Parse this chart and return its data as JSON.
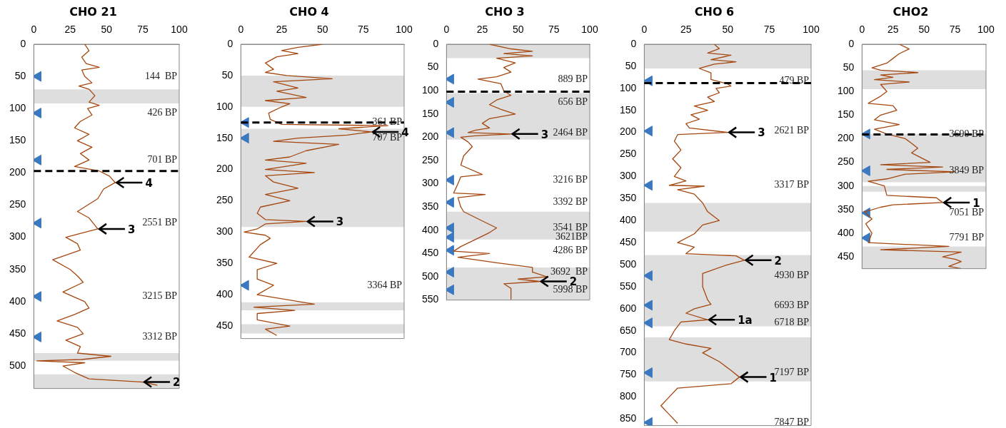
{
  "chart_data": [
    {
      "type": "line",
      "title": "CHO 21",
      "xlim": [
        0,
        100
      ],
      "xticks": [
        0,
        25,
        50,
        75,
        100
      ],
      "ylim": [
        535,
        0
      ],
      "yticks": [
        0,
        50,
        100,
        150,
        200,
        250,
        300,
        350,
        400,
        450,
        500
      ],
      "series": [
        {
          "color": "#a5470f",
          "x": [
            35,
            38,
            33,
            36,
            45,
            33,
            35,
            40,
            31,
            38,
            42,
            38,
            45,
            37,
            40,
            32,
            28,
            38,
            30,
            40,
            32,
            38,
            28,
            45,
            52,
            56,
            48,
            44,
            37,
            30,
            38,
            44,
            22,
            30,
            32,
            13,
            25,
            30,
            34,
            20,
            35,
            38,
            28,
            16,
            30,
            34,
            22,
            32,
            30,
            53,
            33,
            2,
            35,
            20,
            28,
            38,
            75,
            85
          ],
          "values": [
            0,
            10,
            20,
            30,
            36,
            40,
            50,
            60,
            65,
            70,
            80,
            90,
            95,
            100,
            110,
            120,
            130,
            140,
            150,
            160,
            170,
            180,
            190,
            197,
            205,
            215,
            225,
            240,
            250,
            260,
            270,
            287,
            300,
            310,
            320,
            335,
            350,
            360,
            370,
            385,
            400,
            410,
            420,
            430,
            440,
            450,
            460,
            470,
            480,
            485,
            490,
            492,
            495,
            500,
            510,
            520,
            525,
            530
          ]
        },
        {
          "type": "scatter",
          "marker": "triangle",
          "color": "#3a78c0",
          "x": [
            3,
            3,
            3,
            3,
            3,
            3
          ],
          "values": [
            50,
            107,
            180,
            278,
            392,
            455
          ]
        }
      ],
      "bands": [
        {
          "axis": "y",
          "from": 70,
          "to": 92
        },
        {
          "axis": "y",
          "from": 480,
          "to": 492
        },
        {
          "axis": "y",
          "from": 513,
          "to": 535
        }
      ],
      "ref_lines": [
        {
          "axis": "y",
          "value": 197,
          "line_style": "dashed"
        }
      ],
      "annotations": [
        "144  BP",
        "426 BP",
        "701 BP",
        "2551 BP",
        "3215 BP",
        "3312 BP",
        {
          "text": "4",
          "x": 56,
          "y": 215
        },
        {
          "text": "3",
          "x": 44,
          "y": 287
        },
        {
          "text": "2",
          "x": 75,
          "y": 525
        }
      ]
    },
    {
      "type": "line",
      "title": "CHO 4",
      "xlim": [
        0,
        100
      ],
      "xticks": [
        0,
        25,
        50,
        75,
        100
      ],
      "ylim": [
        470,
        0
      ],
      "yticks": [
        0,
        50,
        100,
        150,
        200,
        250,
        300,
        350,
        400,
        450
      ],
      "series": [
        {
          "color": "#a5470f",
          "x": [
            50,
            35,
            25,
            35,
            22,
            15,
            20,
            15,
            28,
            56,
            20,
            35,
            22,
            40,
            15,
            30,
            25,
            17,
            18,
            25,
            90,
            60,
            80,
            65,
            35,
            20,
            60,
            40,
            30,
            15,
            40,
            15,
            45,
            15,
            20,
            35,
            15,
            30,
            12,
            10,
            15,
            40,
            15,
            10,
            2,
            15,
            18,
            12,
            5,
            22,
            10,
            10,
            20,
            10,
            45,
            8,
            33,
            10,
            10,
            30,
            15,
            22
          ],
          "values": [
            0,
            5,
            10,
            15,
            20,
            30,
            40,
            45,
            50,
            55,
            60,
            70,
            75,
            85,
            90,
            95,
            100,
            110,
            120,
            128,
            130,
            135,
            140,
            145,
            150,
            155,
            160,
            170,
            180,
            185,
            190,
            200,
            205,
            210,
            220,
            230,
            240,
            250,
            260,
            270,
            280,
            283,
            287,
            295,
            300,
            305,
            310,
            320,
            340,
            350,
            360,
            375,
            385,
            400,
            415,
            420,
            425,
            430,
            440,
            450,
            455,
            465
          ]
        },
        {
          "type": "scatter",
          "marker": "triangle",
          "color": "#3a78c0",
          "x": [
            3,
            3,
            3
          ],
          "values": [
            125,
            150,
            385
          ]
        }
      ],
      "bands": [
        {
          "axis": "y",
          "from": 50,
          "to": 100
        },
        {
          "axis": "y",
          "from": 135,
          "to": 292
        },
        {
          "axis": "y",
          "from": 412,
          "to": 425
        },
        {
          "axis": "y",
          "from": 447,
          "to": 462
        }
      ],
      "ref_lines": [
        {
          "axis": "y",
          "value": 125,
          "line_style": "dashed"
        }
      ],
      "annotations": [
        "361 BP",
        "707 BP",
        "3364 BP",
        {
          "text": "4",
          "x": 80,
          "y": 140
        },
        {
          "text": "3",
          "x": 40,
          "y": 283
        }
      ]
    },
    {
      "type": "line",
      "title": "CHO 3",
      "xlim": [
        0,
        100
      ],
      "xticks": [
        0,
        25,
        50,
        75,
        100
      ],
      "ylim": [
        550,
        0
      ],
      "yticks": [
        0,
        50,
        100,
        150,
        200,
        250,
        300,
        350,
        400,
        450,
        500,
        550
      ],
      "series": [
        {
          "color": "#a5470f",
          "x": [
            30,
            45,
            60,
            40,
            60,
            35,
            48,
            40,
            45,
            35,
            22,
            38,
            40,
            45,
            35,
            30,
            38,
            48,
            30,
            25,
            30,
            20,
            15,
            45,
            20,
            10,
            15,
            18,
            12,
            10,
            25,
            10,
            8,
            5,
            27,
            8,
            10,
            12,
            25,
            35,
            30,
            20,
            10,
            5,
            30,
            8,
            35,
            60,
            60,
            70,
            50,
            65,
            40,
            45,
            45
          ],
          "values": [
            0,
            10,
            15,
            20,
            25,
            30,
            40,
            50,
            60,
            70,
            75,
            85,
            100,
            110,
            120,
            130,
            140,
            150,
            160,
            170,
            180,
            185,
            190,
            193,
            197,
            200,
            210,
            220,
            240,
            260,
            280,
            285,
            300,
            320,
            323,
            330,
            350,
            360,
            380,
            395,
            405,
            420,
            435,
            445,
            450,
            458,
            470,
            480,
            490,
            500,
            505,
            510,
            515,
            525,
            548
          ]
        },
        {
          "type": "scatter",
          "marker": "triangle",
          "color": "#3a78c0",
          "x": [
            3,
            3,
            3,
            3,
            3,
            3,
            3,
            3,
            3,
            3
          ],
          "values": [
            75,
            125,
            190,
            292,
            340,
            395,
            415,
            443,
            490,
            528
          ]
        }
      ],
      "bands": [
        {
          "axis": "y",
          "from": 0,
          "to": 30
        },
        {
          "axis": "y",
          "from": 105,
          "to": 205
        },
        {
          "axis": "y",
          "from": 360,
          "to": 420
        },
        {
          "axis": "y",
          "from": 480,
          "to": 550
        }
      ],
      "ref_lines": [
        {
          "axis": "y",
          "value": 102,
          "line_style": "dashed"
        }
      ],
      "annotations": [
        "889 BP",
        "656 BP",
        "2464 BP",
        "3216 BP",
        "3392 BP",
        "3541 BP",
        "3621BP",
        "4286 BP",
        "3692  BP",
        "5998 BP",
        {
          "text": "3",
          "x": 45,
          "y": 193
        },
        {
          "text": "2",
          "x": 65,
          "y": 510
        }
      ]
    },
    {
      "type": "line",
      "title": "CHO 6",
      "xlim": [
        0,
        100
      ],
      "xticks": [
        0,
        25,
        50,
        75,
        100
      ],
      "ylim": [
        865,
        0
      ],
      "yticks": [
        0,
        50,
        100,
        150,
        200,
        250,
        300,
        350,
        400,
        450,
        500,
        550,
        600,
        650,
        700,
        750,
        800,
        850
      ],
      "series": [
        {
          "color": "#a5470f",
          "x": [
            42,
            45,
            38,
            52,
            40,
            55,
            42,
            33,
            40,
            40,
            50,
            52,
            43,
            45,
            38,
            42,
            30,
            38,
            28,
            33,
            25,
            27,
            50,
            20,
            18,
            22,
            17,
            22,
            18,
            25,
            15,
            36,
            20,
            30,
            35,
            38,
            45,
            35,
            30,
            20,
            30,
            25,
            55,
            60,
            50,
            35,
            35,
            38,
            40,
            30,
            25,
            38,
            22,
            18,
            15,
            25,
            40,
            35,
            45,
            52,
            57,
            52,
            20,
            15,
            10,
            15,
            20
          ],
          "values": [
            0,
            10,
            20,
            25,
            35,
            40,
            45,
            55,
            65,
            80,
            90,
            95,
            100,
            110,
            120,
            130,
            140,
            150,
            160,
            170,
            180,
            190,
            200,
            205,
            220,
            240,
            260,
            280,
            300,
            310,
            320,
            322,
            330,
            340,
            360,
            380,
            400,
            410,
            430,
            450,
            460,
            475,
            480,
            490,
            500,
            520,
            550,
            580,
            590,
            600,
            610,
            625,
            630,
            650,
            670,
            680,
            690,
            700,
            720,
            740,
            755,
            770,
            780,
            800,
            820,
            840,
            860
          ]
        },
        {
          "type": "scatter",
          "marker": "triangle",
          "color": "#3a78c0",
          "x": [
            3,
            3,
            3,
            3,
            3,
            3,
            3,
            3
          ],
          "values": [
            83,
            197,
            320,
            525,
            592,
            632,
            745,
            858
          ]
        }
      ],
      "bands": [
        {
          "axis": "y",
          "from": 0,
          "to": 55
        },
        {
          "axis": "y",
          "from": 360,
          "to": 425
        },
        {
          "axis": "y",
          "from": 478,
          "to": 640
        },
        {
          "axis": "y",
          "from": 665,
          "to": 765
        }
      ],
      "ref_lines": [
        {
          "axis": "y",
          "value": 88,
          "line_style": "dashed"
        }
      ],
      "annotations": [
        "479 BP",
        "2621 BP",
        "3317 BP",
        "4930 BP",
        "6693 BP",
        "6718 BP",
        "7197 BP",
        "7847 BP",
        {
          "text": "3",
          "x": 50,
          "y": 200
        },
        {
          "text": "2",
          "x": 60,
          "y": 490
        },
        {
          "text": "1a",
          "x": 38,
          "y": 625
        },
        {
          "text": "1",
          "x": 57,
          "y": 755
        }
      ]
    },
    {
      "type": "line",
      "title": "CHO2",
      "xlim": [
        0,
        100
      ],
      "xticks": [
        0,
        25,
        50,
        75,
        100
      ],
      "ylim": [
        475,
        0
      ],
      "yticks": [
        0,
        50,
        100,
        150,
        200,
        250,
        300,
        350,
        400,
        450
      ],
      "series": [
        {
          "color": "#a5470f",
          "x": [
            30,
            38,
            30,
            25,
            20,
            8,
            15,
            45,
            15,
            25,
            10,
            38,
            15,
            20,
            15,
            5,
            25,
            28,
            15,
            10,
            30,
            10,
            20,
            35,
            40,
            45,
            40,
            55,
            15,
            65,
            20,
            75,
            35,
            20,
            5,
            18,
            20,
            60,
            65,
            25,
            15,
            2,
            8,
            3,
            8,
            5,
            70,
            15,
            80,
            65,
            75,
            80,
            70,
            80
          ],
          "values": [
            0,
            10,
            20,
            30,
            40,
            50,
            55,
            60,
            65,
            70,
            75,
            80,
            85,
            100,
            110,
            125,
            130,
            140,
            150,
            160,
            170,
            180,
            190,
            200,
            210,
            220,
            230,
            250,
            255,
            260,
            265,
            270,
            275,
            285,
            290,
            300,
            320,
            325,
            335,
            340,
            345,
            355,
            370,
            380,
            400,
            420,
            428,
            435,
            440,
            450,
            455,
            460,
            470,
            475
          ]
        },
        {
          "type": "scatter",
          "marker": "triangle",
          "color": "#3a78c0",
          "x": [
            4,
            4,
            4,
            4
          ],
          "values": [
            190,
            268,
            357,
            410
          ]
        }
      ],
      "bands": [
        {
          "axis": "y",
          "from": 55,
          "to": 95
        },
        {
          "axis": "y",
          "from": 190,
          "to": 292
        },
        {
          "axis": "y",
          "from": 300,
          "to": 312
        },
        {
          "axis": "y",
          "from": 428,
          "to": 475
        }
      ],
      "ref_lines": [
        {
          "axis": "y",
          "value": 191,
          "line_style": "dashed"
        }
      ],
      "annotations": [
        "3690 BP",
        "3849 BP",
        "7051 BP",
        "7791 BP",
        {
          "text": "1",
          "x": 65,
          "y": 335
        }
      ]
    }
  ]
}
